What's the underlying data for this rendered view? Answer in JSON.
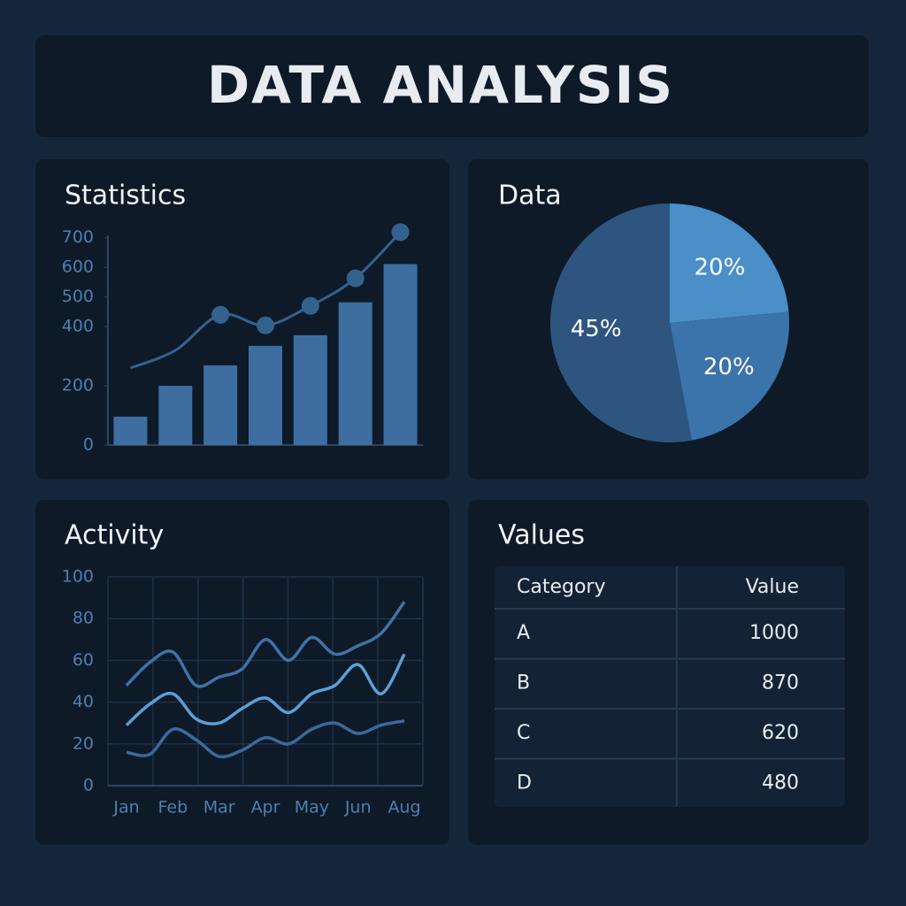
{
  "header": {
    "title": "DATA ANALYSIS"
  },
  "chart_data": [
    {
      "type": "bar",
      "title": "Statistics",
      "categories": [
        null,
        null,
        null,
        null,
        null,
        null,
        null
      ],
      "series": [
        {
          "type": "bar",
          "color": "#3d6e9f",
          "values": [
            96,
            200,
            269,
            335,
            371,
            482,
            611
          ]
        },
        {
          "type": "line",
          "color": "#34628f",
          "values": [
            260,
            320,
            440,
            404,
            470,
            563,
            719
          ]
        }
      ],
      "ylim": [
        0,
        720
      ],
      "yticks": [
        0,
        200,
        400,
        500,
        600,
        700
      ]
    },
    {
      "type": "pie",
      "title": "Data",
      "values": [
        20,
        20,
        45
      ],
      "value_labels": [
        "20%",
        "20%",
        "45%"
      ],
      "colors": [
        "#4a8fc8",
        "#3b74aa",
        "#2e5580"
      ]
    },
    {
      "type": "line",
      "title": "Activity",
      "categories": [
        "Jan",
        null,
        "Feb",
        null,
        "Mar",
        null,
        "Apr",
        null,
        "May",
        null,
        "Jun",
        null,
        "Aug"
      ],
      "series": [
        {
          "color": "#3f73a8",
          "values": [
            48,
            59,
            64,
            48,
            52,
            56,
            70,
            60,
            71,
            63,
            67,
            73,
            88
          ]
        },
        {
          "color": "#5b9fd8",
          "values": [
            29,
            39,
            44,
            32,
            30,
            37,
            42,
            35,
            44,
            48,
            58,
            44,
            63
          ]
        },
        {
          "color": "#3a6a9c",
          "values": [
            16,
            15,
            27,
            22,
            14,
            17,
            23,
            20,
            27,
            30,
            25,
            29,
            31
          ]
        }
      ],
      "ylim": [
        0,
        100
      ],
      "yticks": [
        0,
        20,
        40,
        60,
        80,
        100
      ],
      "grid": true
    }
  ],
  "table": {
    "title": "Values",
    "columns": [
      "Category",
      "Value"
    ],
    "rows": [
      [
        "A",
        1000
      ],
      [
        "B",
        870
      ],
      [
        "C",
        620
      ],
      [
        "D",
        480
      ]
    ]
  }
}
